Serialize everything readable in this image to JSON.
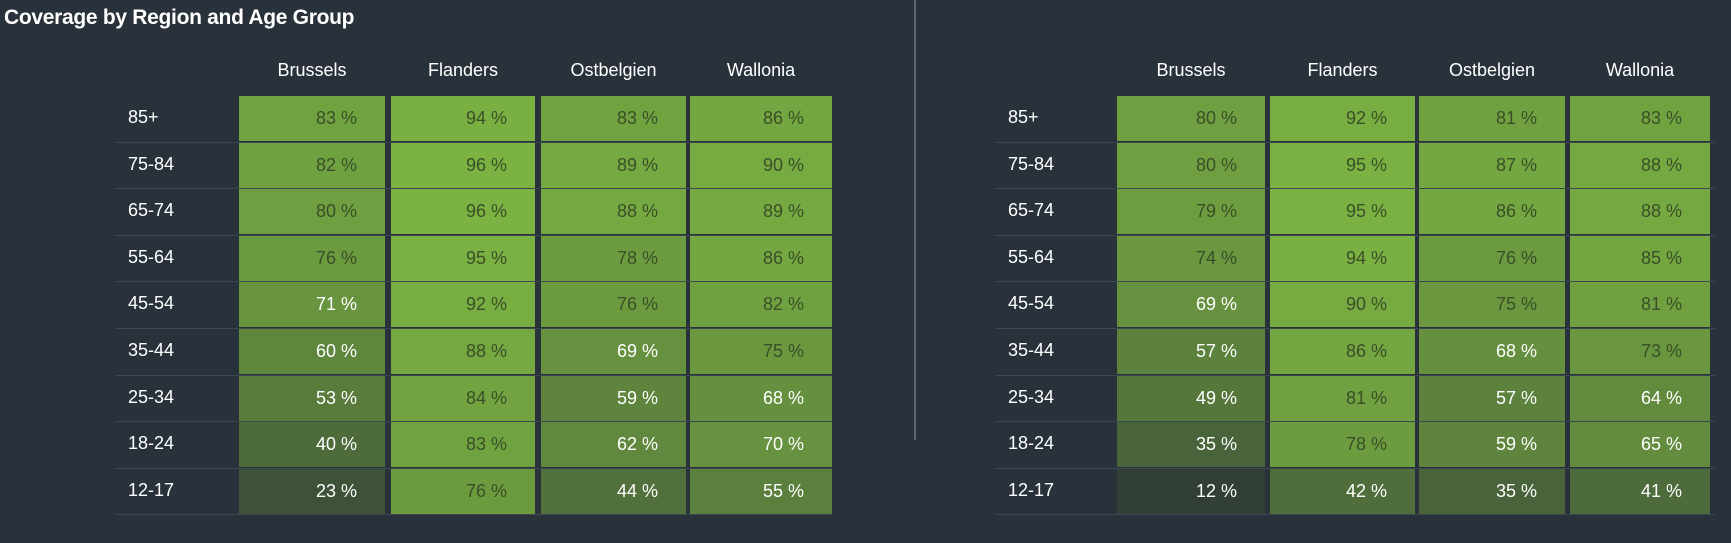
{
  "title": "Coverage by Region and Age Group",
  "colors": {
    "background": "#29323a",
    "cell_low": "#2e3a36",
    "cell_high": "#7cb342"
  },
  "chart_data": [
    {
      "type": "heatmap",
      "columns": [
        "Brussels",
        "Flanders",
        "Ostbelgien",
        "Wallonia"
      ],
      "rows": [
        "85+",
        "75-84",
        "65-74",
        "55-64",
        "45-54",
        "35-44",
        "25-34",
        "18-24",
        "12-17"
      ],
      "unit": "%",
      "values": [
        [
          83,
          94,
          83,
          86
        ],
        [
          82,
          96,
          89,
          90
        ],
        [
          80,
          96,
          88,
          89
        ],
        [
          76,
          95,
          78,
          86
        ],
        [
          71,
          92,
          76,
          82
        ],
        [
          60,
          88,
          69,
          75
        ],
        [
          53,
          84,
          59,
          68
        ],
        [
          40,
          83,
          62,
          70
        ],
        [
          23,
          76,
          44,
          55
        ]
      ]
    },
    {
      "type": "heatmap",
      "columns": [
        "Brussels",
        "Flanders",
        "Ostbelgien",
        "Wallonia"
      ],
      "rows": [
        "85+",
        "75-84",
        "65-74",
        "55-64",
        "45-54",
        "35-44",
        "25-34",
        "18-24",
        "12-17"
      ],
      "unit": "%",
      "values": [
        [
          80,
          92,
          81,
          83
        ],
        [
          80,
          95,
          87,
          88
        ],
        [
          79,
          95,
          86,
          88
        ],
        [
          74,
          94,
          76,
          85
        ],
        [
          69,
          90,
          75,
          81
        ],
        [
          57,
          86,
          68,
          73
        ],
        [
          49,
          81,
          57,
          64
        ],
        [
          35,
          78,
          59,
          65
        ],
        [
          12,
          42,
          35,
          41
        ]
      ]
    }
  ]
}
